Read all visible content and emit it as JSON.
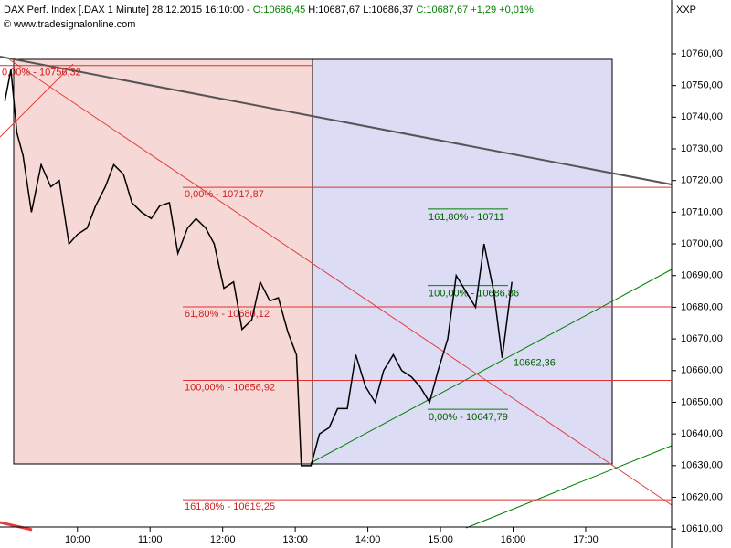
{
  "chart_data": {
    "type": "line",
    "title_parts": [
      {
        "text": "DAX Perf. Index [.DAX  1 Minute] 28.12.2015 16:10:00 - ",
        "color": "#000000"
      },
      {
        "text": "O:10686,45",
        "color": "#008000"
      },
      {
        "text": " H:10687,67 L:10686,37 ",
        "color": "#000000"
      },
      {
        "text": "C:10687,67 +1,29 +0,01%",
        "color": "#008000"
      }
    ],
    "subtitle": "© www.tradesignalonline.com",
    "axis_label": "XXP",
    "x": [
      540,
      545,
      550,
      555,
      562,
      570,
      578,
      585,
      593,
      600,
      608,
      615,
      623,
      630,
      638,
      645,
      653,
      661,
      668,
      676,
      683,
      691,
      698,
      706,
      713,
      721,
      729,
      736,
      744,
      751,
      759,
      766,
      774,
      781,
      785,
      793,
      800,
      808,
      815,
      823,
      830,
      838,
      846,
      853,
      861,
      868,
      876,
      883,
      891,
      898,
      906,
      913,
      921,
      929,
      936,
      944,
      951,
      959
    ],
    "series": [
      {
        "name": "DAX",
        "color": "#000000",
        "values": [
          10745,
          10755,
          10735,
          10728,
          10710,
          10725,
          10718,
          10720,
          10700,
          10703,
          10705,
          10712,
          10718,
          10725,
          10722,
          10713,
          10710,
          10708,
          10712,
          10713,
          10697,
          10705,
          10708,
          10705,
          10700,
          10686,
          10688,
          10673,
          10676,
          10688,
          10682,
          10683,
          10672,
          10665,
          10630,
          10630,
          10640,
          10642,
          10648,
          10648,
          10665,
          10655,
          10650,
          10660,
          10665,
          10660,
          10658,
          10655,
          10650,
          10660,
          10670,
          10690,
          10685,
          10680,
          10700,
          10685,
          10664,
          10688
        ]
      }
    ],
    "xlim": [
      536,
      1091
    ],
    "xticks": [
      {
        "value": 600,
        "label": "10:00"
      },
      {
        "value": 660,
        "label": "11:00"
      },
      {
        "value": 720,
        "label": "12:00"
      },
      {
        "value": 780,
        "label": "13:00"
      },
      {
        "value": 840,
        "label": "14:00"
      },
      {
        "value": 900,
        "label": "15:00"
      },
      {
        "value": 960,
        "label": "16:00"
      },
      {
        "value": 1020,
        "label": "17:00"
      }
    ],
    "ylim": [
      10604,
      10777
    ],
    "yticks": [
      {
        "value": 10610,
        "label": "10610,00"
      },
      {
        "value": 10620,
        "label": "10620,00"
      },
      {
        "value": 10630,
        "label": "10630,00"
      },
      {
        "value": 10640,
        "label": "10640,00"
      },
      {
        "value": 10650,
        "label": "10650,00"
      },
      {
        "value": 10660,
        "label": "10660,00"
      },
      {
        "value": 10670,
        "label": "10670,00"
      },
      {
        "value": 10680,
        "label": "10680,00"
      },
      {
        "value": 10690,
        "label": "10690,00"
      },
      {
        "value": 10700,
        "label": "10700,00"
      },
      {
        "value": 10710,
        "label": "10710,00"
      },
      {
        "value": 10720,
        "label": "10720,00"
      },
      {
        "value": 10730,
        "label": "10730,00"
      },
      {
        "value": 10740,
        "label": "10740,00"
      },
      {
        "value": 10750,
        "label": "10750,00"
      },
      {
        "value": 10760,
        "label": "10760,00"
      }
    ],
    "red_levels": [
      {
        "text": "0,00% - 10756,32",
        "value": 10756.32
      },
      {
        "text": "0,00% - 10717,87",
        "value": 10717.87
      },
      {
        "text": "61,80% - 10680,12",
        "value": 10680.12
      },
      {
        "text": "100,00% - 10656,92",
        "value": 10656.92
      },
      {
        "text": "161,80% - 10619,25",
        "value": 10619.25
      }
    ],
    "green_levels": [
      {
        "text": "161,80% - 10711",
        "value": 10711
      },
      {
        "text": "100,00% - 10686,86",
        "value": 10686.86
      },
      {
        "text": "0,00% - 10647,79",
        "value": 10647.79
      }
    ],
    "point_label": {
      "text": "10662,36",
      "value": 10662.36
    }
  }
}
